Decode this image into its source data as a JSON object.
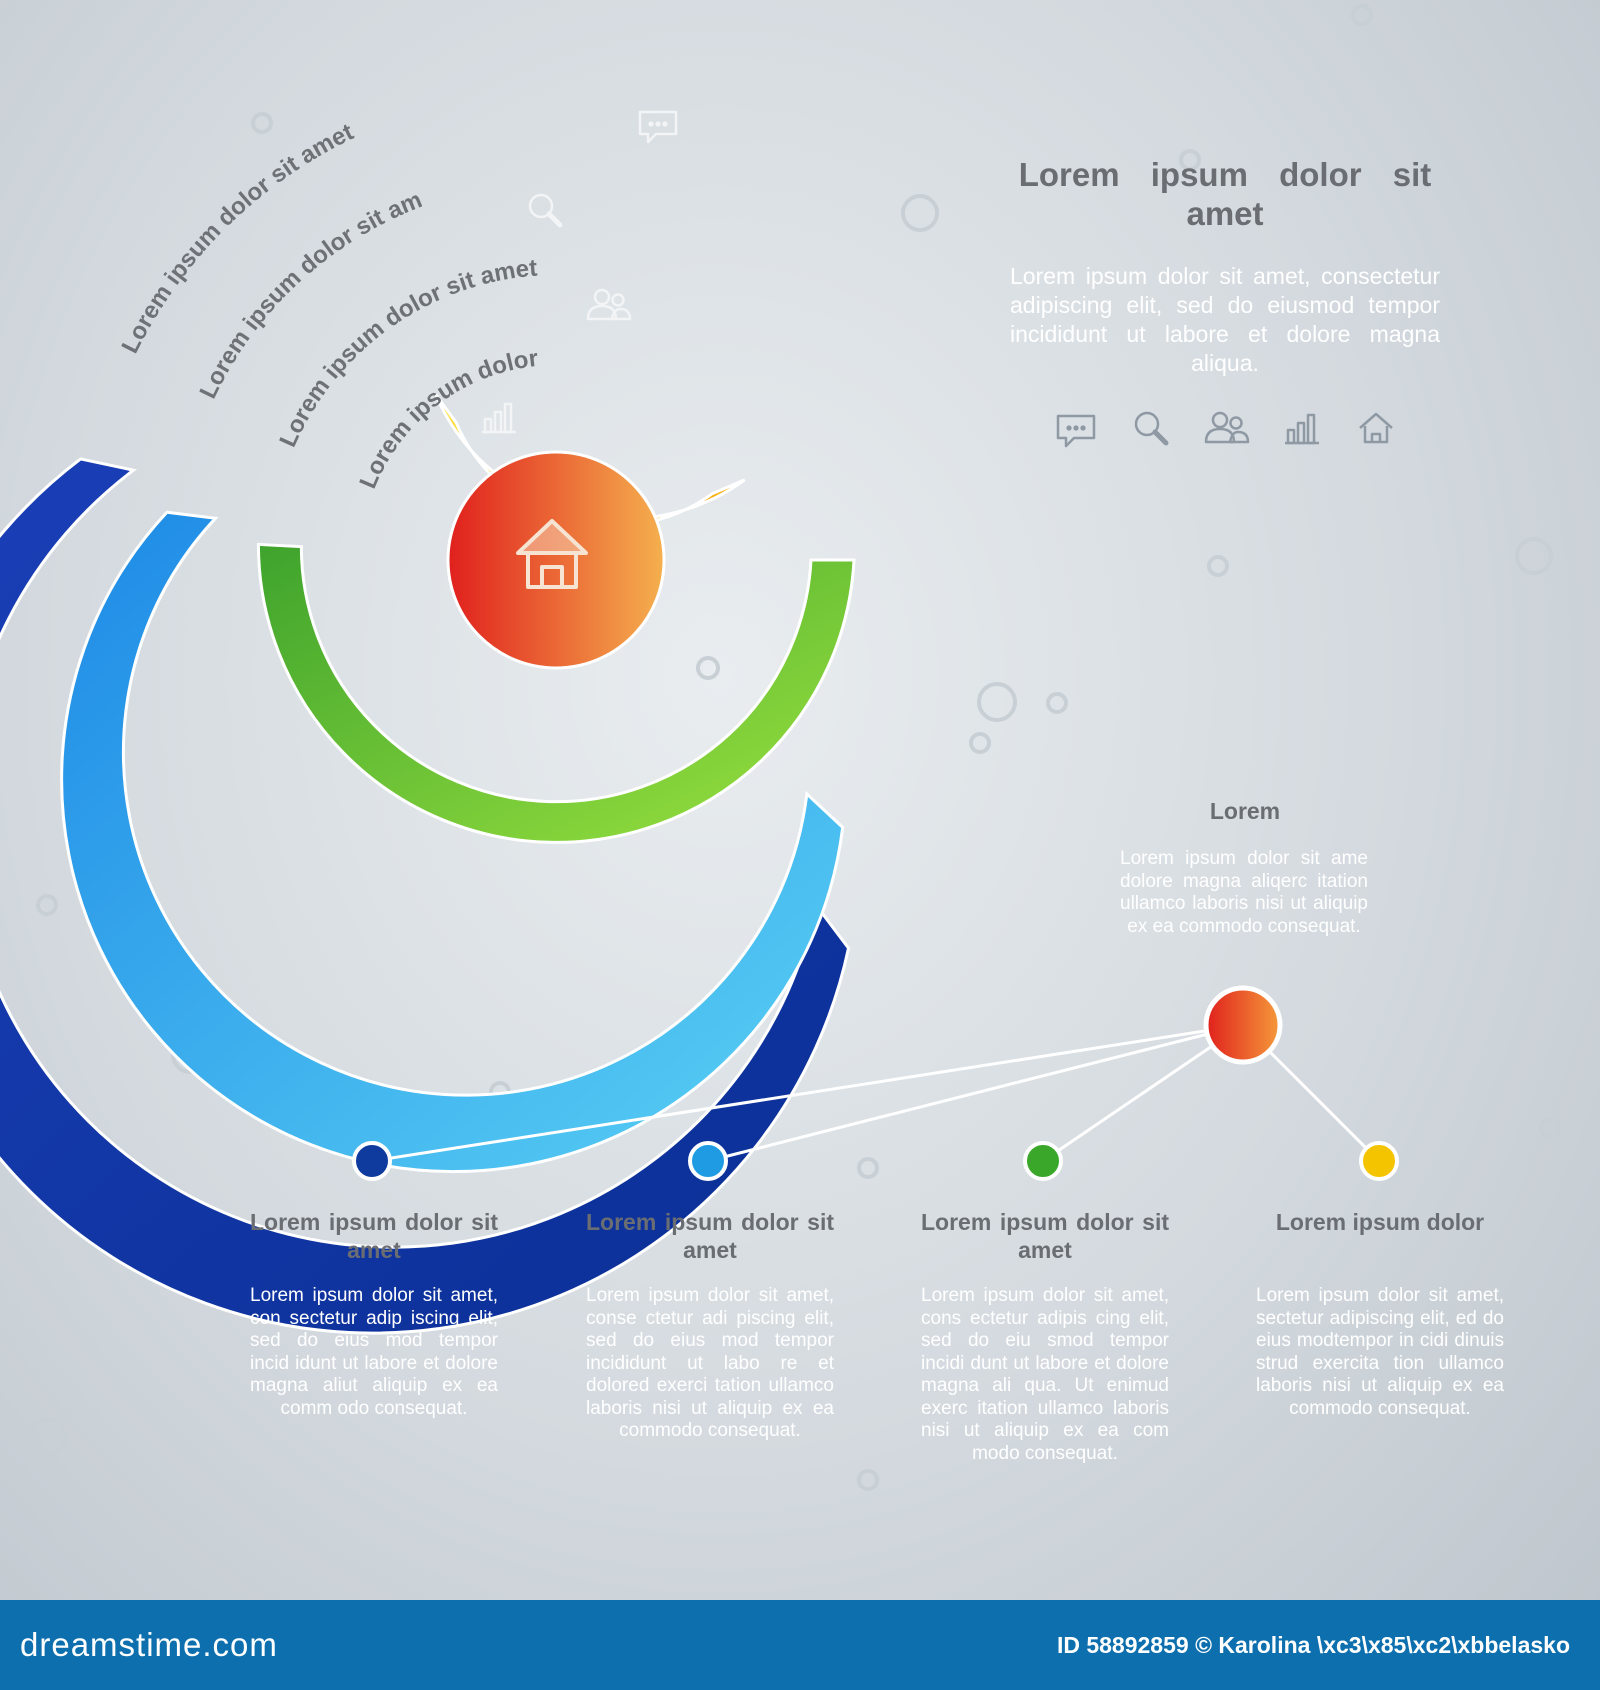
{
  "rings": [
    {
      "label": "Lorem ipsum dolor sit amet",
      "color_from": "#1b3fb8",
      "color_to": "#0a2f95",
      "icon": "speech-bubble-icon"
    },
    {
      "label": "Lorem ipsum dolor sit amet",
      "color_from": "#1e8ae6",
      "color_to": "#5ad1f4",
      "icon": "magnifier-icon"
    },
    {
      "label": "Lorem ipsum dolor sit amet",
      "color_from": "#3ea32d",
      "color_to": "#9be23f",
      "icon": "people-icon"
    },
    {
      "label": "Lorem ipsum dolor",
      "color_from": "#ffe23d",
      "color_to": "#f6a400",
      "icon": "bar-chart-icon"
    }
  ],
  "center": {
    "icon": "house-icon",
    "color_from": "#e0201d",
    "color_to": "#f5b04e"
  },
  "heading": {
    "title": "Lorem ipsum dolor sit amet",
    "body": "Lorem ipsum dolor sit amet, consectetur adipiscing elit, sed do eiusmod tempor incididunt ut labore et dolore magna aliqua.",
    "icons": [
      "speech-bubble-icon",
      "magnifier-icon",
      "people-icon",
      "bar-chart-icon",
      "house-icon"
    ]
  },
  "hub": {
    "title": "Lorem",
    "body": "Lorem ipsum dolor sit ame dolore magna aliqerc itation ullamco laboris nisi ut aliquip ex ea commodo consequat."
  },
  "columns": [
    {
      "color": "#0f3a9e",
      "title": "Lorem ipsum dolor sit amet",
      "body": "Lorem ipsum dolor sit amet, con sectetur adip iscing elit, sed do eius mod tempor incid idunt ut labore et dolore magna aliut aliquip ex ea comm odo consequat."
    },
    {
      "color": "#1f9be3",
      "title": "Lorem ipsum dolor sit amet",
      "body": "Lorem ipsum dolor sit amet, conse ctetur adi piscing elit, sed do eius mod tempor incididunt ut labo re et dolored exerci tation ullamco laboris nisi ut aliquip ex ea commodo consequat."
    },
    {
      "color": "#3aa62a",
      "title": "Lorem ipsum dolor sit amet",
      "body": "Lorem ipsum dolor sit amet, cons ectetur adipis cing elit, sed do eiu smod tempor incidi dunt ut labore et dolore magna ali qua. Ut enimud exerc itation ullamco laboris nisi ut aliquip ex ea com modo consequat."
    },
    {
      "color": "#f5c400",
      "title": "Lorem ipsum dolor",
      "body": "Lorem ipsum dolor sit amet, sectetur adipiscing elit, ed do eius modtempor in cidi dinuis strud exercita tion ullamco laboris nisi ut aliquip ex ea commodo consequat."
    }
  ],
  "footer": {
    "brand": "dreamstime.com",
    "credit": "ID 58892859 © Karolina \\xc3\\x85\\xc2\\xbbelasko"
  }
}
